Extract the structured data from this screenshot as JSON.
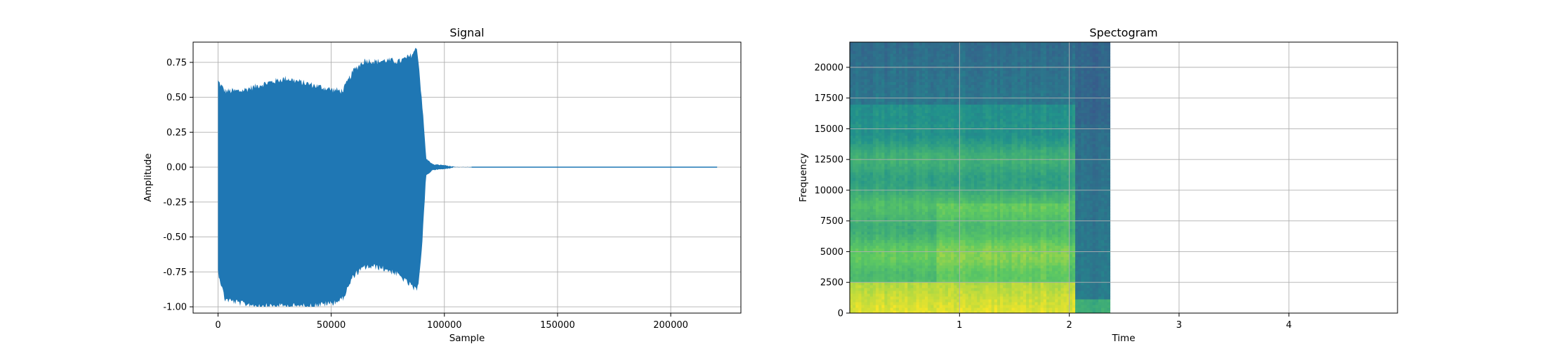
{
  "chart_data": [
    {
      "type": "line",
      "title": "Signal",
      "xlabel": "Sample",
      "ylabel": "Amplitude",
      "xlim": [
        -11000,
        231000
      ],
      "ylim": [
        -1.045,
        0.895
      ],
      "xticks": [
        0,
        50000,
        100000,
        150000,
        200000
      ],
      "yticks": [
        -1.0,
        -0.75,
        -0.5,
        -0.25,
        0.0,
        0.25,
        0.5,
        0.75
      ],
      "grid": true,
      "color": "#1f77b4",
      "series": [
        {
          "x": [
            0,
            3000,
            10000,
            20000,
            30000,
            40000,
            50000,
            55000,
            60000,
            65000,
            70000,
            75000,
            80000,
            85000,
            88000,
            90000,
            92000,
            95000,
            100000,
            105000,
            110000,
            220500
          ],
          "upper": [
            0.62,
            0.55,
            0.55,
            0.6,
            0.64,
            0.6,
            0.56,
            0.55,
            0.7,
            0.77,
            0.76,
            0.77,
            0.76,
            0.8,
            0.86,
            0.5,
            0.06,
            0.02,
            0.015,
            0.0,
            0.0,
            0.0
          ],
          "lower": [
            -0.75,
            -0.95,
            -0.98,
            -1.0,
            -1.0,
            -1.0,
            -0.98,
            -0.95,
            -0.78,
            -0.72,
            -0.72,
            -0.74,
            -0.78,
            -0.85,
            -0.9,
            -0.6,
            -0.06,
            -0.02,
            -0.015,
            0.0,
            0.0,
            0.0
          ]
        }
      ]
    },
    {
      "type": "heatmap",
      "title": "Spectogram",
      "xlabel": "Time",
      "ylabel": "Frequency",
      "xlim": [
        0.0,
        4.99
      ],
      "ylim": [
        0,
        22050
      ],
      "xticks": [
        1,
        2,
        3,
        4
      ],
      "yticks": [
        0,
        2500,
        5000,
        7500,
        10000,
        12500,
        15000,
        17500,
        20000
      ],
      "grid": true,
      "colormap": "viridis",
      "signal_end_time": 2.37,
      "sound_end_time": 2.05
    }
  ]
}
